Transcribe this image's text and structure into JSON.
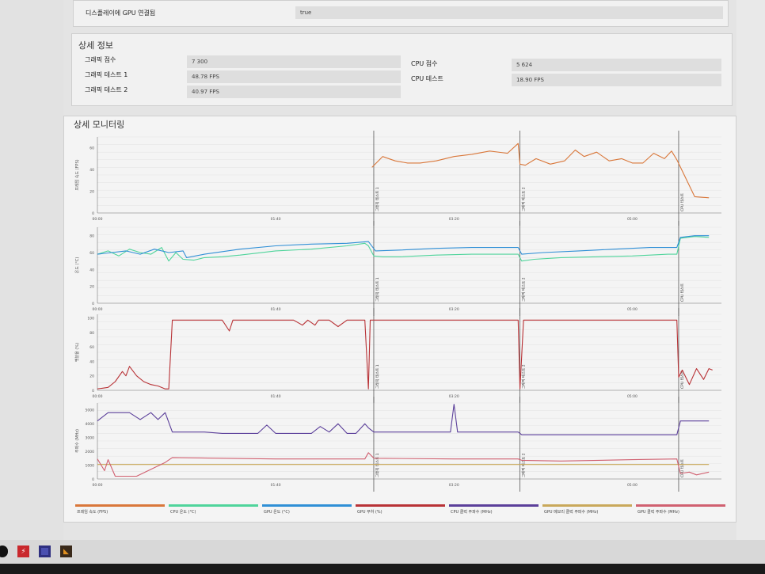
{
  "top": {
    "row_label": "디스플레이에 GPU 연결됨",
    "row_value": "true"
  },
  "detail": {
    "title": "상세 정보",
    "left_rows": [
      {
        "label": "그래픽 점수",
        "value": "7 300"
      },
      {
        "label": "그래픽 테스트 1",
        "value": "48.78 FPS"
      },
      {
        "label": "그래픽 테스트 2",
        "value": "40.97 FPS"
      }
    ],
    "right_rows": [
      {
        "label": "CPU 점수",
        "value": "5 624"
      },
      {
        "label": "CPU 테스트",
        "value": "18.90 FPS"
      }
    ]
  },
  "monitor": {
    "title": "상세 모니터링",
    "x_ticks": [
      "00:00",
      "01:40",
      "03:20",
      "05:00"
    ],
    "markers": [
      "그래픽 테스트 1",
      "그래픽 테스트 2",
      "CPU 테스트"
    ],
    "legend": [
      {
        "name": "프레임 속도 (FPS)",
        "color": "#d9773a"
      },
      {
        "name": "CPU 온도 (°C)",
        "color": "#4fd49b"
      },
      {
        "name": "GPU 온도 (°C)",
        "color": "#2f8fd6"
      },
      {
        "name": "GPU 부하 (%)",
        "color": "#b83236"
      },
      {
        "name": "CPU 클럭 주파수 (MHz)",
        "color": "#5b3f9a"
      },
      {
        "name": "GPU 메모리 클럭 주파수 (MHz)",
        "color": "#c9a85a"
      },
      {
        "name": "GPU 클럭 주파수 (MHz)",
        "color": "#d06070"
      }
    ]
  },
  "chart_data": [
    {
      "type": "line",
      "ylabel": "프레임 속도 (FPS)",
      "y_ticks": [
        "0",
        "20",
        "40",
        "60"
      ],
      "ylim": [
        0,
        70
      ],
      "xlim": [
        0,
        350
      ],
      "series": [
        {
          "name": "프레임 속도 (FPS)",
          "color": "#d9773a",
          "x": [
            154,
            160,
            167,
            174,
            181,
            190,
            200,
            210,
            220,
            230,
            236,
            237,
            240,
            246,
            254,
            262,
            268,
            273,
            280,
            287,
            294,
            300,
            306,
            312,
            318,
            322,
            325,
            335,
            343
          ],
          "y": [
            42,
            52,
            48,
            46,
            46,
            48,
            52,
            54,
            57,
            55,
            64,
            45,
            44,
            50,
            45,
            48,
            58,
            52,
            56,
            48,
            50,
            46,
            46,
            55,
            50,
            57,
            49,
            15,
            14
          ]
        }
      ]
    },
    {
      "type": "line",
      "ylabel": "온도 (°C)",
      "y_ticks": [
        "0",
        "20",
        "40",
        "60",
        "80"
      ],
      "ylim": [
        0,
        90
      ],
      "xlim": [
        0,
        350
      ],
      "series": [
        {
          "name": "CPU 온도 (°C)",
          "color": "#4fd49b",
          "x": [
            0,
            6,
            12,
            18,
            24,
            30,
            36,
            40,
            44,
            48,
            54,
            60,
            70,
            80,
            100,
            120,
            140,
            150,
            152,
            155,
            160,
            170,
            190,
            210,
            230,
            236,
            238,
            245,
            260,
            280,
            300,
            320,
            325,
            327,
            335,
            343
          ],
          "y": [
            58,
            62,
            56,
            64,
            60,
            58,
            66,
            50,
            60,
            52,
            51,
            54,
            55,
            57,
            62,
            64,
            68,
            71,
            68,
            56,
            55,
            55,
            57,
            58,
            58,
            58,
            50,
            52,
            54,
            55,
            56,
            58,
            58,
            77,
            79,
            78
          ]
        },
        {
          "name": "GPU 온도 (°C)",
          "color": "#2f8fd6",
          "x": [
            0,
            8,
            16,
            24,
            32,
            40,
            48,
            50,
            60,
            80,
            100,
            120,
            140,
            152,
            156,
            170,
            190,
            210,
            230,
            236,
            238,
            250,
            270,
            290,
            310,
            325,
            327,
            335,
            343
          ],
          "y": [
            58,
            60,
            62,
            58,
            64,
            60,
            62,
            54,
            58,
            64,
            68,
            70,
            71,
            73,
            62,
            63,
            65,
            66,
            66,
            66,
            58,
            60,
            62,
            64,
            66,
            66,
            78,
            80,
            80
          ]
        }
      ]
    },
    {
      "type": "line",
      "ylabel": "백분율 (%)",
      "y_ticks": [
        "0",
        "20",
        "40",
        "60",
        "80",
        "100"
      ],
      "ylim": [
        0,
        105
      ],
      "xlim": [
        0,
        350
      ],
      "series": [
        {
          "name": "GPU 부하 (%)",
          "color": "#b83236",
          "x": [
            0,
            6,
            10,
            14,
            16,
            18,
            22,
            26,
            30,
            34,
            38,
            40,
            42,
            70,
            74,
            76,
            80,
            110,
            115,
            118,
            122,
            124,
            130,
            135,
            140,
            150,
            152,
            153,
            155,
            236,
            237,
            239,
            325,
            326,
            328,
            332,
            336,
            340,
            343,
            345
          ],
          "y": [
            2,
            4,
            12,
            26,
            20,
            33,
            20,
            12,
            8,
            6,
            2,
            2,
            97,
            97,
            82,
            97,
            97,
            97,
            90,
            97,
            90,
            97,
            97,
            88,
            97,
            97,
            2,
            97,
            97,
            97,
            2,
            97,
            97,
            18,
            28,
            8,
            30,
            15,
            30,
            28
          ]
        }
      ]
    },
    {
      "type": "line",
      "ylabel": "주파수 (MHz)",
      "y_ticks": [
        "0",
        "1000",
        "2000",
        "3000",
        "4000",
        "5000"
      ],
      "ylim": [
        0,
        5500
      ],
      "xlim": [
        0,
        350
      ],
      "series": [
        {
          "name": "CPU 클럭 주파수 (MHz)",
          "color": "#5b3f9a",
          "x": [
            0,
            6,
            12,
            18,
            24,
            30,
            34,
            38,
            42,
            60,
            70,
            80,
            90,
            95,
            100,
            110,
            120,
            125,
            130,
            135,
            140,
            145,
            150,
            152,
            155,
            180,
            190,
            198,
            200,
            202,
            210,
            236,
            238,
            250,
            300,
            325,
            327,
            343
          ],
          "y": [
            4200,
            4800,
            4800,
            4800,
            4300,
            4800,
            4300,
            4800,
            3400,
            3400,
            3300,
            3300,
            3300,
            3900,
            3300,
            3300,
            3300,
            3800,
            3400,
            4000,
            3300,
            3300,
            4000,
            3700,
            3400,
            3400,
            3400,
            3400,
            5400,
            3400,
            3400,
            3400,
            3200,
            3200,
            3200,
            3200,
            4200,
            4200
          ]
        },
        {
          "name": "GPU 메모리 클럭 주파수 (MHz)",
          "color": "#c9a85a",
          "x": [
            0,
            343
          ],
          "y": [
            1050,
            1050
          ]
        },
        {
          "name": "GPU 클럭 주파수 (MHz)",
          "color": "#d06070",
          "x": [
            0,
            4,
            6,
            10,
            14,
            18,
            22,
            38,
            42,
            70,
            100,
            150,
            152,
            155,
            200,
            236,
            238,
            260,
            300,
            325,
            327,
            332,
            336,
            343
          ],
          "y": [
            1450,
            600,
            1400,
            200,
            200,
            200,
            200,
            1200,
            1550,
            1500,
            1450,
            1450,
            1900,
            1500,
            1450,
            1450,
            1350,
            1300,
            1400,
            1450,
            400,
            500,
            300,
            500
          ]
        }
      ]
    }
  ]
}
